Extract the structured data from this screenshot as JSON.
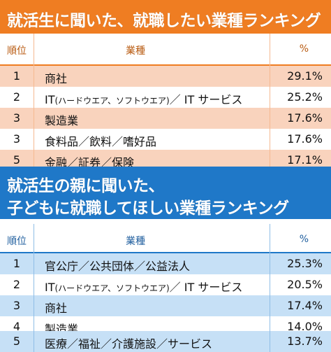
{
  "ranking_students": {
    "title": "就活生に聞いた、就職したい業種ランキング",
    "headers": {
      "rank": "順位",
      "industry": "業種",
      "percent": "%"
    },
    "rows": [
      {
        "rank": "1",
        "industry": "商社",
        "industry_note": "",
        "industry_tail": "",
        "percent": "29.1%"
      },
      {
        "rank": "2",
        "industry": "IT",
        "industry_note": "(ハードウエア、ソフトウエア)",
        "industry_tail": "／ IT サービス",
        "percent": "25.2%"
      },
      {
        "rank": "3",
        "industry": "製造業",
        "industry_note": "",
        "industry_tail": "",
        "percent": "17.6%"
      },
      {
        "rank": "3",
        "industry": "食料品／飲料／嗜好品",
        "industry_note": "",
        "industry_tail": "",
        "percent": "17.6%"
      },
      {
        "rank": "5",
        "industry": "金融／証券／保険",
        "industry_note": "",
        "industry_tail": "",
        "percent": "17.1%"
      }
    ]
  },
  "ranking_parents": {
    "title_line1": "就活生の親に聞いた、",
    "title_line2": "子どもに就職してほしい業種ランキング",
    "headers": {
      "rank": "順位",
      "industry": "業種",
      "percent": "%"
    },
    "rows": [
      {
        "rank": "1",
        "industry": "官公庁／公共団体／公益法人",
        "industry_note": "",
        "industry_tail": "",
        "percent": "25.3%"
      },
      {
        "rank": "2",
        "industry": "IT",
        "industry_note": "(ハードウエア、ソフトウエア)",
        "industry_tail": "／ IT サービス",
        "percent": "20.5%"
      },
      {
        "rank": "3",
        "industry": "商社",
        "industry_note": "",
        "industry_tail": "",
        "percent": "17.4%"
      },
      {
        "rank": "4",
        "industry": "製造業",
        "industry_note": "",
        "industry_tail": "",
        "percent": "14.0%"
      },
      {
        "rank": "5",
        "industry": "医療／福祉／介護施設／サービス",
        "industry_note": "",
        "industry_tail": "",
        "percent": "13.7%"
      }
    ]
  },
  "colors": {
    "orange_banner": "#ef7d22",
    "orange_row_shade": "#f9d3bd",
    "blue_banner": "#1f78c8",
    "blue_row_shade": "#c6e0f6"
  }
}
